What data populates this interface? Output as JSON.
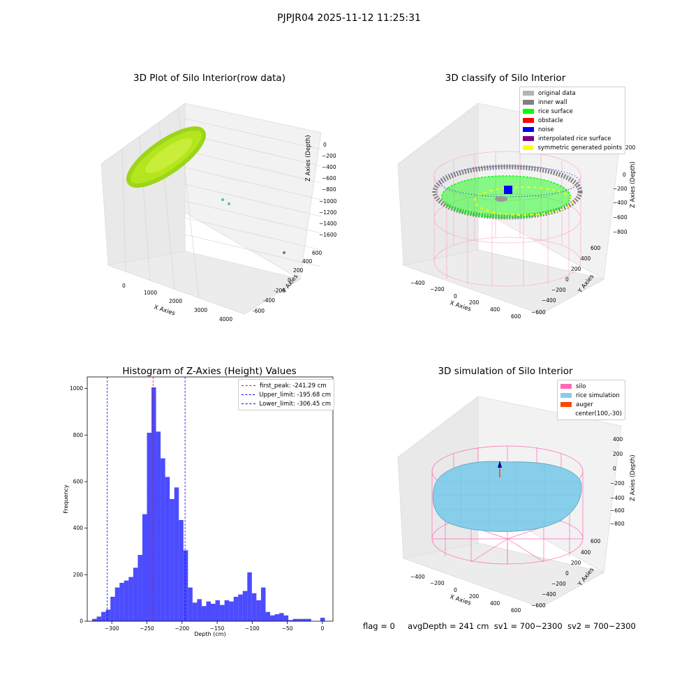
{
  "figure": {
    "title": "PJPJR04 2025-11-12 11:25:31"
  },
  "panels": {
    "raw": {
      "title": "3D Plot of Silo Interior(row data)",
      "xlabel": "X Axies",
      "ylabel": "Y Axies",
      "zlabel": "Z Axies (Depth)",
      "xticks": [
        "0",
        "1000",
        "2000",
        "3000",
        "4000"
      ],
      "yticks": [
        "-600",
        "-400",
        "-200",
        "0",
        "200",
        "400",
        "600"
      ],
      "zticks": [
        "0",
        "−200",
        "−400",
        "−600",
        "−800",
        "−1000",
        "−1200",
        "−1400",
        "−1600"
      ]
    },
    "classify": {
      "title": "3D classify of Silo Interior",
      "xlabel": "X Axies",
      "ylabel": "Y Axies",
      "zlabel": "Z Axies (Depth)",
      "xticks": [
        "−400",
        "−200",
        "0",
        "200",
        "400",
        "600"
      ],
      "yticks": [
        "−600",
        "−400",
        "−200",
        "0",
        "200",
        "400",
        "600"
      ],
      "zticks": [
        "200",
        "0",
        "−200",
        "−400",
        "−600",
        "−800"
      ],
      "legend": [
        {
          "label": "original data",
          "color": "#b3b3b3"
        },
        {
          "label": "inner wall",
          "color": "#808080"
        },
        {
          "label": "rice surface",
          "color": "#00ff00"
        },
        {
          "label": "obstacle",
          "color": "#ff0000"
        },
        {
          "label": "noise",
          "color": "#0000ff"
        },
        {
          "label": "interpolated rice surface",
          "color": "#800080"
        },
        {
          "label": "symmetric generated points",
          "color": "#ffff00"
        }
      ]
    },
    "simulation": {
      "title": "3D simulation of Silo Interior",
      "xlabel": "X Axies",
      "ylabel": "Y Axies",
      "zlabel": "Z Axies (Depth)",
      "xticks": [
        "−400",
        "−200",
        "0",
        "200",
        "400",
        "600"
      ],
      "yticks": [
        "−600",
        "−400",
        "−200",
        "0",
        "200",
        "400",
        "600"
      ],
      "zticks": [
        "400",
        "200",
        "0",
        "−200",
        "−400",
        "−600",
        "−800"
      ],
      "legend": [
        {
          "label": "silo",
          "color": "#ff69b4"
        },
        {
          "label": "rice simulation",
          "color": "#87ceeb"
        },
        {
          "label": "auger",
          "color": "#ff4500"
        },
        {
          "label": "center(100,-30)",
          "color": ""
        }
      ]
    }
  },
  "footer": {
    "flag": "flag = 0",
    "avg_depth": "avgDepth = 241 cm",
    "sv1": "sv1 = 700~2300",
    "sv2": "sv2 = 700~2300"
  },
  "chart_data": {
    "type": "bar",
    "title": "Histogram of Z-Axies (Height) Values",
    "xlabel": "Depth (cm)",
    "ylabel": "Frequency",
    "xlim": [
      -335,
      15
    ],
    "ylim": [
      0,
      1050
    ],
    "xticks": [
      -300,
      -250,
      -200,
      -150,
      -100,
      -50,
      0
    ],
    "yticks": [
      0,
      200,
      400,
      600,
      800,
      1000
    ],
    "bar_color": "#0000ff",
    "bin_edges": [
      -328,
      -321.5,
      -315,
      -308.5,
      -302,
      -295.5,
      -289,
      -282.5,
      -276,
      -269.5,
      -263,
      -256.5,
      -250,
      -243.5,
      -237,
      -230.5,
      -224,
      -217.5,
      -211,
      -204.5,
      -198,
      -191.5,
      -185,
      -178.5,
      -172,
      -165.5,
      -159,
      -152.5,
      -146,
      -139.5,
      -133,
      -126.5,
      -120,
      -113.5,
      -107,
      -100.5,
      -94,
      -87.5,
      -81,
      -74.5,
      -68,
      -61.5,
      -55,
      -48.5,
      -42,
      -35.5,
      -29,
      -22.5,
      -16,
      -9.5,
      -3,
      3.5
    ],
    "values": [
      10,
      20,
      40,
      50,
      105,
      145,
      165,
      175,
      190,
      230,
      285,
      460,
      810,
      1005,
      815,
      700,
      620,
      525,
      575,
      435,
      305,
      145,
      80,
      95,
      65,
      85,
      75,
      90,
      70,
      90,
      85,
      105,
      115,
      130,
      210,
      120,
      90,
      145,
      40,
      25,
      30,
      35,
      25,
      5,
      10,
      10,
      10,
      10,
      0,
      0,
      15
    ],
    "vlines": [
      {
        "label": "first_peak: -241.29 cm",
        "x": -241.29,
        "color": "#ff0000"
      },
      {
        "label": "Upper_limit: -195.68 cm",
        "x": -195.68,
        "color": "#0000ff"
      },
      {
        "label": "Lower_limit: -306.45 cm",
        "x": -306.45,
        "color": "#0000ff"
      }
    ]
  }
}
